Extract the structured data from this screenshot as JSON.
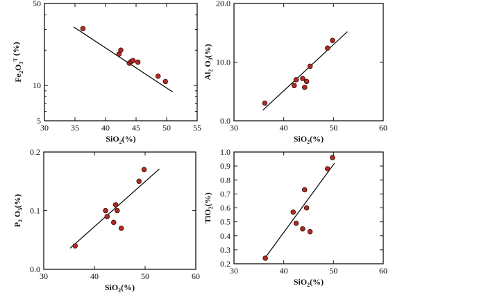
{
  "chart_data": [
    {
      "id": "fe2o3",
      "type": "scatter",
      "yscale": "log",
      "xlabel": "SiO",
      "xlabel_sub": "2",
      "xlabel_suffix": "(%)",
      "ylabel": "Fe",
      "ylabel_sub": "2",
      "ylabel_mid": "O",
      "ylabel_sub2": "3",
      "ylabel_sup": "T",
      "ylabel_suffix": " (%)",
      "xlim": [
        30,
        55
      ],
      "ylim": [
        5,
        50
      ],
      "xticks": [
        30,
        35,
        40,
        45,
        50,
        55
      ],
      "yticks": [
        5,
        10,
        50
      ],
      "xtick_labels": [
        "30",
        "35",
        "40",
        "45",
        "50",
        "55"
      ],
      "ytick_labels": [
        "5",
        "10",
        "50"
      ],
      "points": [
        [
          36.3,
          30.5
        ],
        [
          42.2,
          18.5
        ],
        [
          42.5,
          20.0
        ],
        [
          43.9,
          15.5
        ],
        [
          44.2,
          16.0
        ],
        [
          44.5,
          16.3
        ],
        [
          45.3,
          15.8
        ],
        [
          48.6,
          12.0
        ],
        [
          49.8,
          10.8
        ]
      ],
      "trendline": [
        [
          34.8,
          31.5
        ],
        [
          51.0,
          8.8
        ]
      ]
    },
    {
      "id": "al2o3",
      "type": "scatter",
      "xlabel": "SiO",
      "xlabel_sub": "2",
      "xlabel_suffix": "(%)",
      "ylabel": "Al",
      "ylabel_sub": "2",
      "ylabel_mid": " O",
      "ylabel_sub2": "3",
      "ylabel_sup": "",
      "ylabel_suffix": "(%)",
      "xlim": [
        30,
        60
      ],
      "ylim": [
        0,
        20
      ],
      "xticks": [
        30,
        40,
        50,
        60
      ],
      "yticks": [
        0,
        10,
        20
      ],
      "xtick_labels": [
        "30",
        "40",
        "50",
        "60"
      ],
      "ytick_labels": [
        "0.0",
        "10.0",
        "20.0"
      ],
      "points": [
        [
          36.2,
          3.0
        ],
        [
          42.1,
          6.0
        ],
        [
          42.5,
          7.0
        ],
        [
          43.8,
          7.2
        ],
        [
          44.2,
          5.7
        ],
        [
          44.6,
          6.7
        ],
        [
          45.3,
          9.3
        ],
        [
          48.8,
          12.4
        ],
        [
          49.8,
          13.7
        ]
      ],
      "trendline": [
        [
          35.8,
          1.8
        ],
        [
          52.8,
          15.2
        ]
      ]
    },
    {
      "id": "p2o5",
      "type": "scatter",
      "xlabel": "SiO",
      "xlabel_sub": "2",
      "xlabel_suffix": "(%)",
      "ylabel": "P",
      "ylabel_sub": "2",
      "ylabel_mid": " O",
      "ylabel_sub2": "5",
      "ylabel_sup": "",
      "ylabel_suffix": "(%)",
      "xlim": [
        30,
        60
      ],
      "ylim": [
        0,
        0.2
      ],
      "xticks": [
        30,
        40,
        50,
        60
      ],
      "yticks": [
        0,
        0.1,
        0.2
      ],
      "xtick_labels": [
        "30",
        "40",
        "50",
        "60"
      ],
      "ytick_labels": [
        "0.0",
        "0.1",
        "0.2"
      ],
      "points": [
        [
          36.2,
          0.04
        ],
        [
          42.2,
          0.1
        ],
        [
          42.5,
          0.09
        ],
        [
          43.8,
          0.08
        ],
        [
          44.2,
          0.11
        ],
        [
          44.5,
          0.1
        ],
        [
          45.3,
          0.07
        ],
        [
          48.8,
          0.15
        ],
        [
          49.8,
          0.17
        ]
      ],
      "trendline": [
        [
          35.2,
          0.036
        ],
        [
          52.8,
          0.171
        ]
      ]
    },
    {
      "id": "tio2",
      "type": "scatter",
      "xlabel": "SiO",
      "xlabel_sub": "2",
      "xlabel_suffix": "(%)",
      "ylabel": "TiO",
      "ylabel_sub": "2",
      "ylabel_mid": "",
      "ylabel_sub2": "",
      "ylabel_sup": "",
      "ylabel_suffix": "(%)",
      "xlim": [
        30,
        60
      ],
      "ylim": [
        0.2,
        1.0
      ],
      "xticks": [
        30,
        40,
        50,
        60
      ],
      "yticks": [
        0.2,
        0.3,
        0.4,
        0.5,
        0.6,
        0.7,
        0.8,
        0.9,
        1.0
      ],
      "xtick_labels": [
        "30",
        "40",
        "50",
        "60"
      ],
      "ytick_labels": [
        "0.2",
        "0.3",
        "0.4",
        "0.5",
        "0.6",
        "0.7",
        "0.8",
        "0.9",
        "1.0"
      ],
      "points": [
        [
          36.3,
          0.24
        ],
        [
          41.9,
          0.57
        ],
        [
          42.5,
          0.49
        ],
        [
          43.8,
          0.45
        ],
        [
          44.2,
          0.73
        ],
        [
          44.6,
          0.6
        ],
        [
          45.3,
          0.43
        ],
        [
          48.8,
          0.88
        ],
        [
          49.8,
          0.96
        ]
      ],
      "trendline": [
        [
          36.0,
          0.23
        ],
        [
          50.2,
          0.92
        ]
      ]
    }
  ],
  "style": {
    "marker_fill": "#b22a22",
    "marker_stroke": "#3a0d0a",
    "axis_color": "#111111"
  }
}
